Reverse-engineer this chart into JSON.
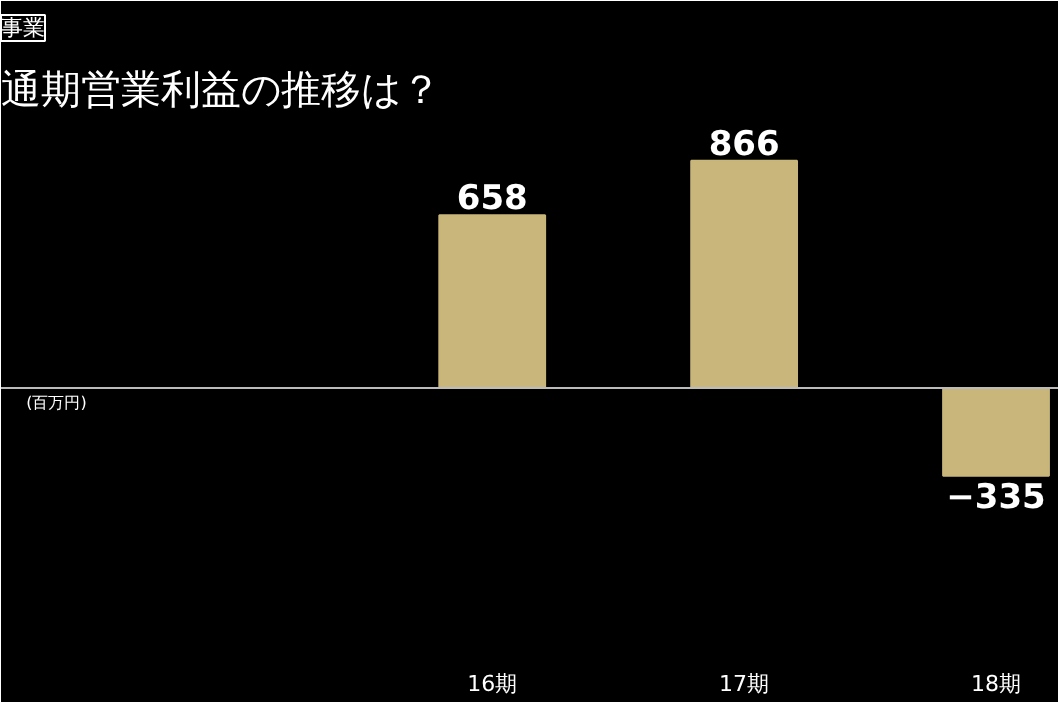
{
  "chart_data": {
    "type": "bar",
    "subtitle": "事業",
    "title": "通期営業利益の推移は？",
    "categories": [
      "16期",
      "17期",
      "18期"
    ],
    "values": [
      658,
      866,
      -335
    ],
    "color": "#c8b67a",
    "data_labels": true,
    "grid": false,
    "annotations": [
      "(百万円)"
    ]
  }
}
